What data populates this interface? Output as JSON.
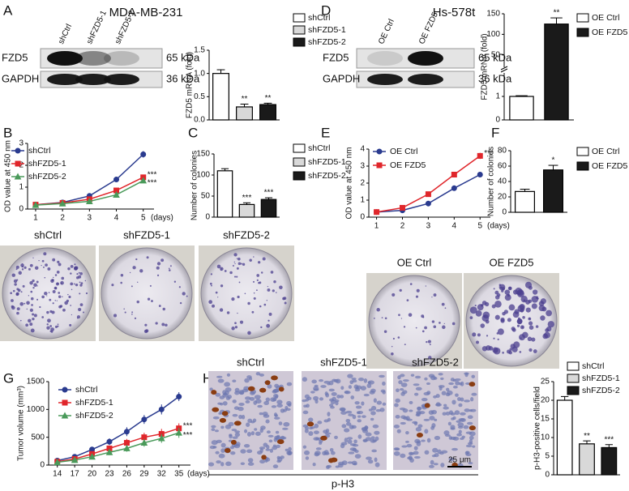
{
  "figure": {
    "panel_labels": [
      "A",
      "B",
      "C",
      "D",
      "E",
      "F",
      "G",
      "H"
    ],
    "cell_lines": [
      "MDA-MB-231",
      "Hs-578t"
    ],
    "blots": [
      {
        "lanes": [
          "shCtrl",
          "shFZD5-1",
          "shFZD5-2"
        ],
        "rows": [
          {
            "protein": "FZD5",
            "size": "65 kDa"
          },
          {
            "protein": "GAPDH",
            "size": "36 kDa"
          }
        ]
      },
      {
        "lanes": [
          "OE Ctrl",
          "OE FZD5"
        ],
        "rows": [
          {
            "protein": "FZD5",
            "size": "65 kDa"
          },
          {
            "protein": "GAPDH",
            "size": "36 kDa"
          }
        ]
      }
    ],
    "colony_photos": [
      [
        "shCtrl",
        "shFZD5-1",
        "shFZD5-2"
      ],
      [
        "OE Ctrl",
        "OE FZD5"
      ]
    ],
    "ihc": {
      "captions": [
        "shCtrl",
        "shFZD5-1",
        "shFZD5-2"
      ],
      "scale_bar": "25 μm",
      "stain": "p-H3"
    }
  },
  "chart_data": [
    {
      "type": "bar",
      "ylabel": "FZD5 mRNA (fold)",
      "categories": [
        "shCtrl",
        "shFZD5-1",
        "shFZD5-2"
      ],
      "values": [
        1.0,
        0.28,
        0.33
      ],
      "errors": [
        0.08,
        0.06,
        0.03
      ],
      "colors": [
        "#ffffff",
        "#d9d9d9",
        "#1a1a1a"
      ],
      "significance": [
        null,
        "**",
        "**"
      ],
      "ylim": [
        0,
        1.5
      ],
      "yticks": [
        {
          "value": 0,
          "label": "0.0"
        },
        0.5,
        {
          "value": 1,
          "label": "1.0"
        },
        1.5
      ]
    },
    {
      "type": "bar",
      "ylabel": "FZD5 mRNA (fold)",
      "categories": [
        "OE Ctrl",
        "OE FZD5"
      ],
      "values": [
        1,
        125
      ],
      "errors": [
        0.03,
        15
      ],
      "colors": [
        "#ffffff",
        "#1a1a1a"
      ],
      "significance": [
        null,
        "**"
      ],
      "y_segments": [
        {
          "ylim": [
            0,
            2
          ],
          "yticks": [
            0,
            1
          ]
        },
        {
          "ylim": [
            20,
            150
          ],
          "yticks": [
            50,
            100,
            150
          ]
        }
      ]
    },
    {
      "type": "line",
      "ylabel": "OD value at 450 nm",
      "xlabel": "(days)",
      "x": [
        1,
        2,
        3,
        4,
        5
      ],
      "xlim": [
        0.7,
        5.4
      ],
      "xticks": [
        1,
        2,
        3,
        4,
        5
      ],
      "ylim": [
        0,
        3
      ],
      "yticks": [
        0,
        1,
        2,
        3
      ],
      "series": [
        {
          "name": "shCtrl",
          "color": "#2a3b8f",
          "marker": "circle",
          "values": [
            0.2,
            0.3,
            0.6,
            1.35,
            2.5
          ],
          "errors": [
            0.02,
            0.03,
            0.1,
            0.1,
            0.15
          ]
        },
        {
          "name": "shFZD5-1",
          "color": "#e0262b",
          "marker": "square",
          "values": [
            0.2,
            0.28,
            0.45,
            0.85,
            1.45
          ],
          "errors": [
            0.02,
            0.03,
            0.05,
            0.08,
            0.1
          ],
          "significance": "***"
        },
        {
          "name": "shFZD5-2",
          "color": "#4a9a5a",
          "marker": "triangle",
          "values": [
            0.18,
            0.25,
            0.35,
            0.65,
            1.3
          ],
          "errors": [
            0.02,
            0.03,
            0.04,
            0.07,
            0.1
          ],
          "significance": "***"
        }
      ]
    },
    {
      "type": "bar",
      "ylabel": "Number of colonies",
      "categories": [
        "shCtrl",
        "shFZD5-1",
        "shFZD5-2"
      ],
      "values": [
        110,
        30,
        42
      ],
      "errors": [
        5,
        4,
        4
      ],
      "colors": [
        "#ffffff",
        "#d9d9d9",
        "#1a1a1a"
      ],
      "significance": [
        null,
        "***",
        "***"
      ],
      "ylim": [
        0,
        150
      ],
      "yticks": [
        0,
        50,
        100,
        150
      ]
    },
    {
      "type": "line",
      "ylabel": "OD value at 450 nm",
      "xlabel": "(days)",
      "x": [
        1,
        2,
        3,
        4,
        5
      ],
      "xlim": [
        0.7,
        5.4
      ],
      "xticks": [
        1,
        2,
        3,
        4,
        5
      ],
      "ylim": [
        0,
        4
      ],
      "yticks": [
        0,
        1,
        2,
        3,
        4
      ],
      "series": [
        {
          "name": "OE Ctrl",
          "color": "#2a3b8f",
          "marker": "circle",
          "values": [
            0.3,
            0.4,
            0.8,
            1.7,
            2.5
          ],
          "errors": [
            0.03,
            0.04,
            0.08,
            0.1,
            0.12
          ]
        },
        {
          "name": "OE FZD5",
          "color": "#e0262b",
          "marker": "square",
          "values": [
            0.3,
            0.55,
            1.35,
            2.5,
            3.6
          ],
          "errors": [
            0.03,
            0.05,
            0.12,
            0.12,
            0.18
          ],
          "significance": "***"
        }
      ]
    },
    {
      "type": "bar",
      "ylabel": "Number of colonies",
      "categories": [
        "OE Ctrl",
        "OE FZD5"
      ],
      "values": [
        27,
        55
      ],
      "errors": [
        3,
        6
      ],
      "colors": [
        "#ffffff",
        "#1a1a1a"
      ],
      "significance": [
        null,
        "*"
      ],
      "ylim": [
        0,
        80
      ],
      "yticks": [
        0,
        20,
        40,
        60,
        80
      ]
    },
    {
      "type": "line",
      "ylabel": "Tumor volume (mm³)",
      "xlabel": "(days)",
      "x": [
        14,
        17,
        20,
        23,
        26,
        29,
        32,
        35
      ],
      "xlim": [
        12.5,
        37
      ],
      "xticks": [
        14,
        17,
        20,
        23,
        26,
        29,
        32,
        35
      ],
      "ylim": [
        0,
        1500
      ],
      "yticks": [
        0,
        500,
        1000,
        1500
      ],
      "series": [
        {
          "name": "shCtrl",
          "color": "#2a3b8f",
          "marker": "circle",
          "values": [
            80,
            150,
            280,
            420,
            600,
            820,
            1000,
            1230
          ],
          "errors": [
            20,
            25,
            40,
            60,
            80,
            80,
            90,
            80
          ]
        },
        {
          "name": "shFZD5-1",
          "color": "#e0262b",
          "marker": "square",
          "values": [
            60,
            110,
            200,
            300,
            400,
            500,
            560,
            660
          ],
          "errors": [
            15,
            20,
            40,
            50,
            70,
            80,
            90,
            90
          ],
          "significance": "***"
        },
        {
          "name": "shFZD5-2",
          "color": "#4a9a5a",
          "marker": "triangle",
          "values": [
            50,
            90,
            150,
            230,
            300,
            400,
            480,
            580
          ],
          "errors": [
            15,
            20,
            30,
            50,
            60,
            70,
            80,
            90
          ],
          "significance": "***"
        }
      ]
    },
    {
      "type": "bar",
      "ylabel": "p-H3-positive cells/field",
      "categories": [
        "shCtrl",
        "shFZD5-1",
        "shFZD5-2"
      ],
      "values": [
        20,
        8.3,
        7.3
      ],
      "errors": [
        1,
        0.8,
        0.8
      ],
      "colors": [
        "#ffffff",
        "#d9d9d9",
        "#1a1a1a"
      ],
      "significance": [
        null,
        "**",
        "***"
      ],
      "ylim": [
        0,
        25
      ],
      "yticks": [
        0,
        5,
        10,
        15,
        20,
        25
      ]
    }
  ]
}
